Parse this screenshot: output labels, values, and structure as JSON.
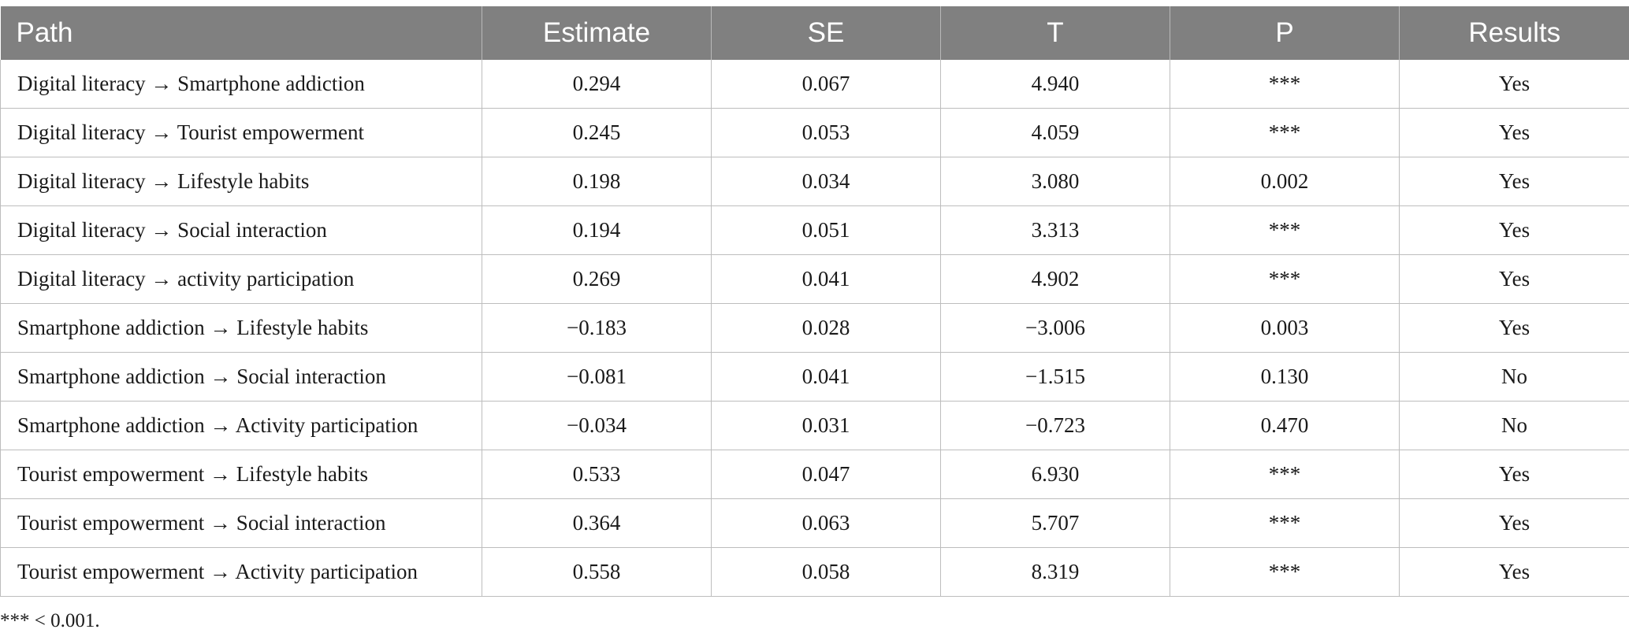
{
  "table": {
    "headers": [
      "Path",
      "Estimate",
      "SE",
      "T",
      "P",
      "Results"
    ],
    "rows": [
      [
        "Digital literacy → Smartphone addiction",
        "0.294",
        "0.067",
        "4.940",
        "***",
        "Yes"
      ],
      [
        "Digital literacy → Tourist empowerment",
        "0.245",
        "0.053",
        "4.059",
        "***",
        "Yes"
      ],
      [
        "Digital literacy → Lifestyle habits",
        "0.198",
        "0.034",
        "3.080",
        "0.002",
        "Yes"
      ],
      [
        "Digital literacy → Social interaction",
        "0.194",
        "0.051",
        "3.313",
        "***",
        "Yes"
      ],
      [
        "Digital literacy → activity participation",
        "0.269",
        "0.041",
        "4.902",
        "***",
        "Yes"
      ],
      [
        "Smartphone addiction → Lifestyle habits",
        "−0.183",
        "0.028",
        "−3.006",
        "0.003",
        "Yes"
      ],
      [
        "Smartphone addiction → Social interaction",
        "−0.081",
        "0.041",
        "−1.515",
        "0.130",
        "No"
      ],
      [
        "Smartphone addiction → Activity participation",
        "−0.034",
        "0.031",
        "−0.723",
        "0.470",
        "No"
      ],
      [
        "Tourist empowerment → Lifestyle habits",
        "0.533",
        "0.047",
        "6.930",
        "***",
        "Yes"
      ],
      [
        "Tourist empowerment → Social interaction",
        "0.364",
        "0.063",
        "5.707",
        "***",
        "Yes"
      ],
      [
        "Tourist empowerment → Activity participation",
        "0.558",
        "0.058",
        "8.319",
        "***",
        "Yes"
      ]
    ]
  },
  "footnote": "*** < 0.001.",
  "colors": {
    "header_bg": "#808080",
    "header_text": "#ffffff",
    "grid": "#bdbdbd"
  }
}
